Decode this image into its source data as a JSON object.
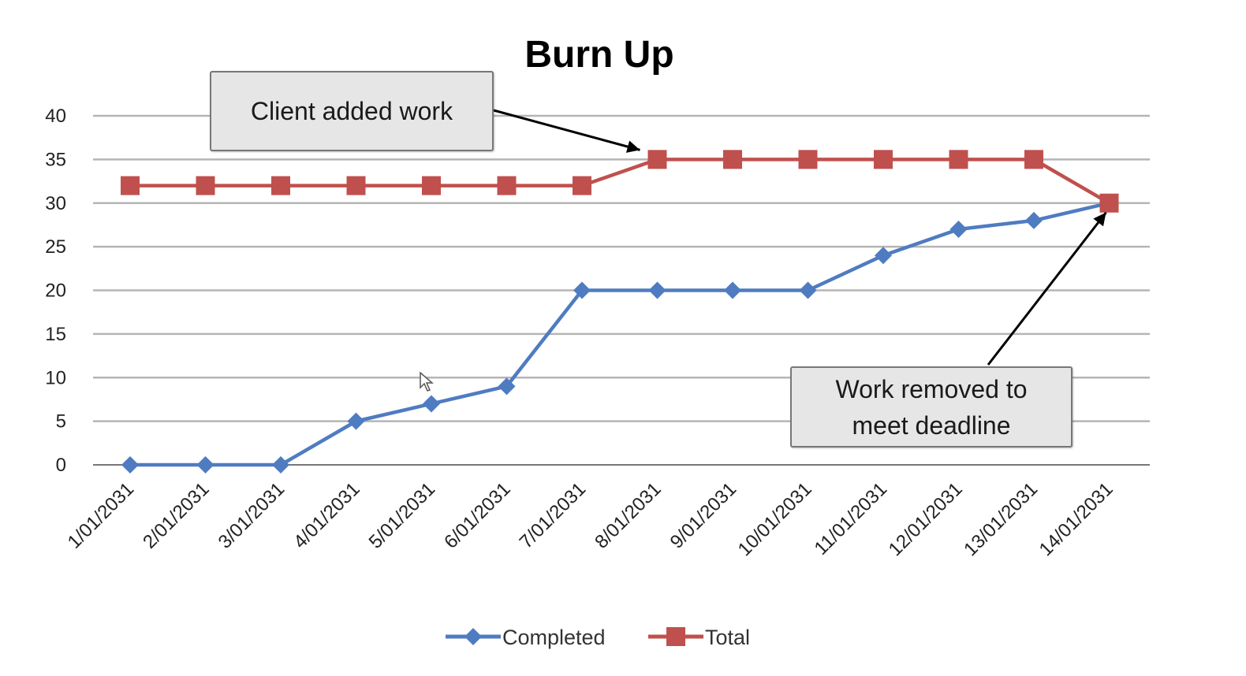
{
  "chart_data": {
    "type": "line",
    "title": "Burn Up",
    "categories": [
      "1/01/2031",
      "2/01/2031",
      "3/01/2031",
      "4/01/2031",
      "5/01/2031",
      "6/01/2031",
      "7/01/2031",
      "8/01/2031",
      "9/01/2031",
      "10/01/2031",
      "11/01/2031",
      "12/01/2031",
      "13/01/2031",
      "14/01/2031"
    ],
    "series": [
      {
        "name": "Completed",
        "color": "#4f7cc1",
        "marker": "diamond",
        "values": [
          0,
          0,
          0,
          5,
          7,
          9,
          20,
          20,
          20,
          20,
          24,
          27,
          28,
          30
        ]
      },
      {
        "name": "Total",
        "color": "#c0504d",
        "marker": "square",
        "values": [
          32,
          32,
          32,
          32,
          32,
          32,
          32,
          35,
          35,
          35,
          35,
          35,
          35,
          30
        ]
      }
    ],
    "ylim": [
      0,
      40
    ],
    "yticks": [
      0,
      5,
      10,
      15,
      20,
      25,
      30,
      35,
      40
    ],
    "grid": true,
    "legend": "bottom",
    "annotations": [
      {
        "text": "Client added work",
        "points_to": {
          "category": "8/01/2031",
          "value": 35
        }
      },
      {
        "text": "Work removed to meet deadline",
        "points_to": {
          "category": "14/01/2031",
          "value": 30
        }
      }
    ]
  }
}
